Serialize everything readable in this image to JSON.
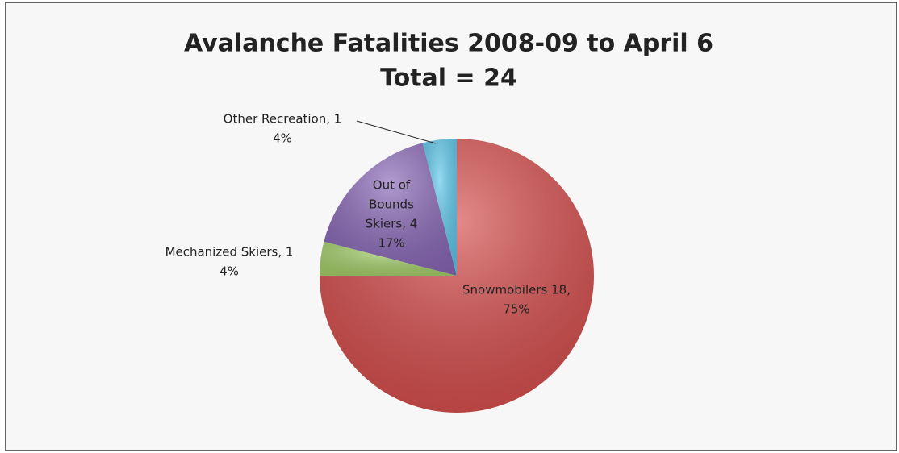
{
  "chart_data": {
    "type": "pie",
    "title": [
      "Avalanche Fatalities 2008-09 to April 6",
      "Total = 24"
    ],
    "values": [
      75,
      4,
      17,
      4
    ],
    "value_labels": [
      "75%",
      "4%",
      "17%",
      "4%"
    ],
    "name_labels": [
      [
        "Snowmobilers 18,"
      ],
      [
        "Mechanized Skiers, 1"
      ],
      [
        "Out of",
        "Bounds",
        "Skiers, 4"
      ],
      [
        "Other Recreation, 1"
      ]
    ],
    "colors": [
      "#d54b4a",
      "#a3cf68",
      "#8866b6",
      "#5cc6ea"
    ]
  }
}
